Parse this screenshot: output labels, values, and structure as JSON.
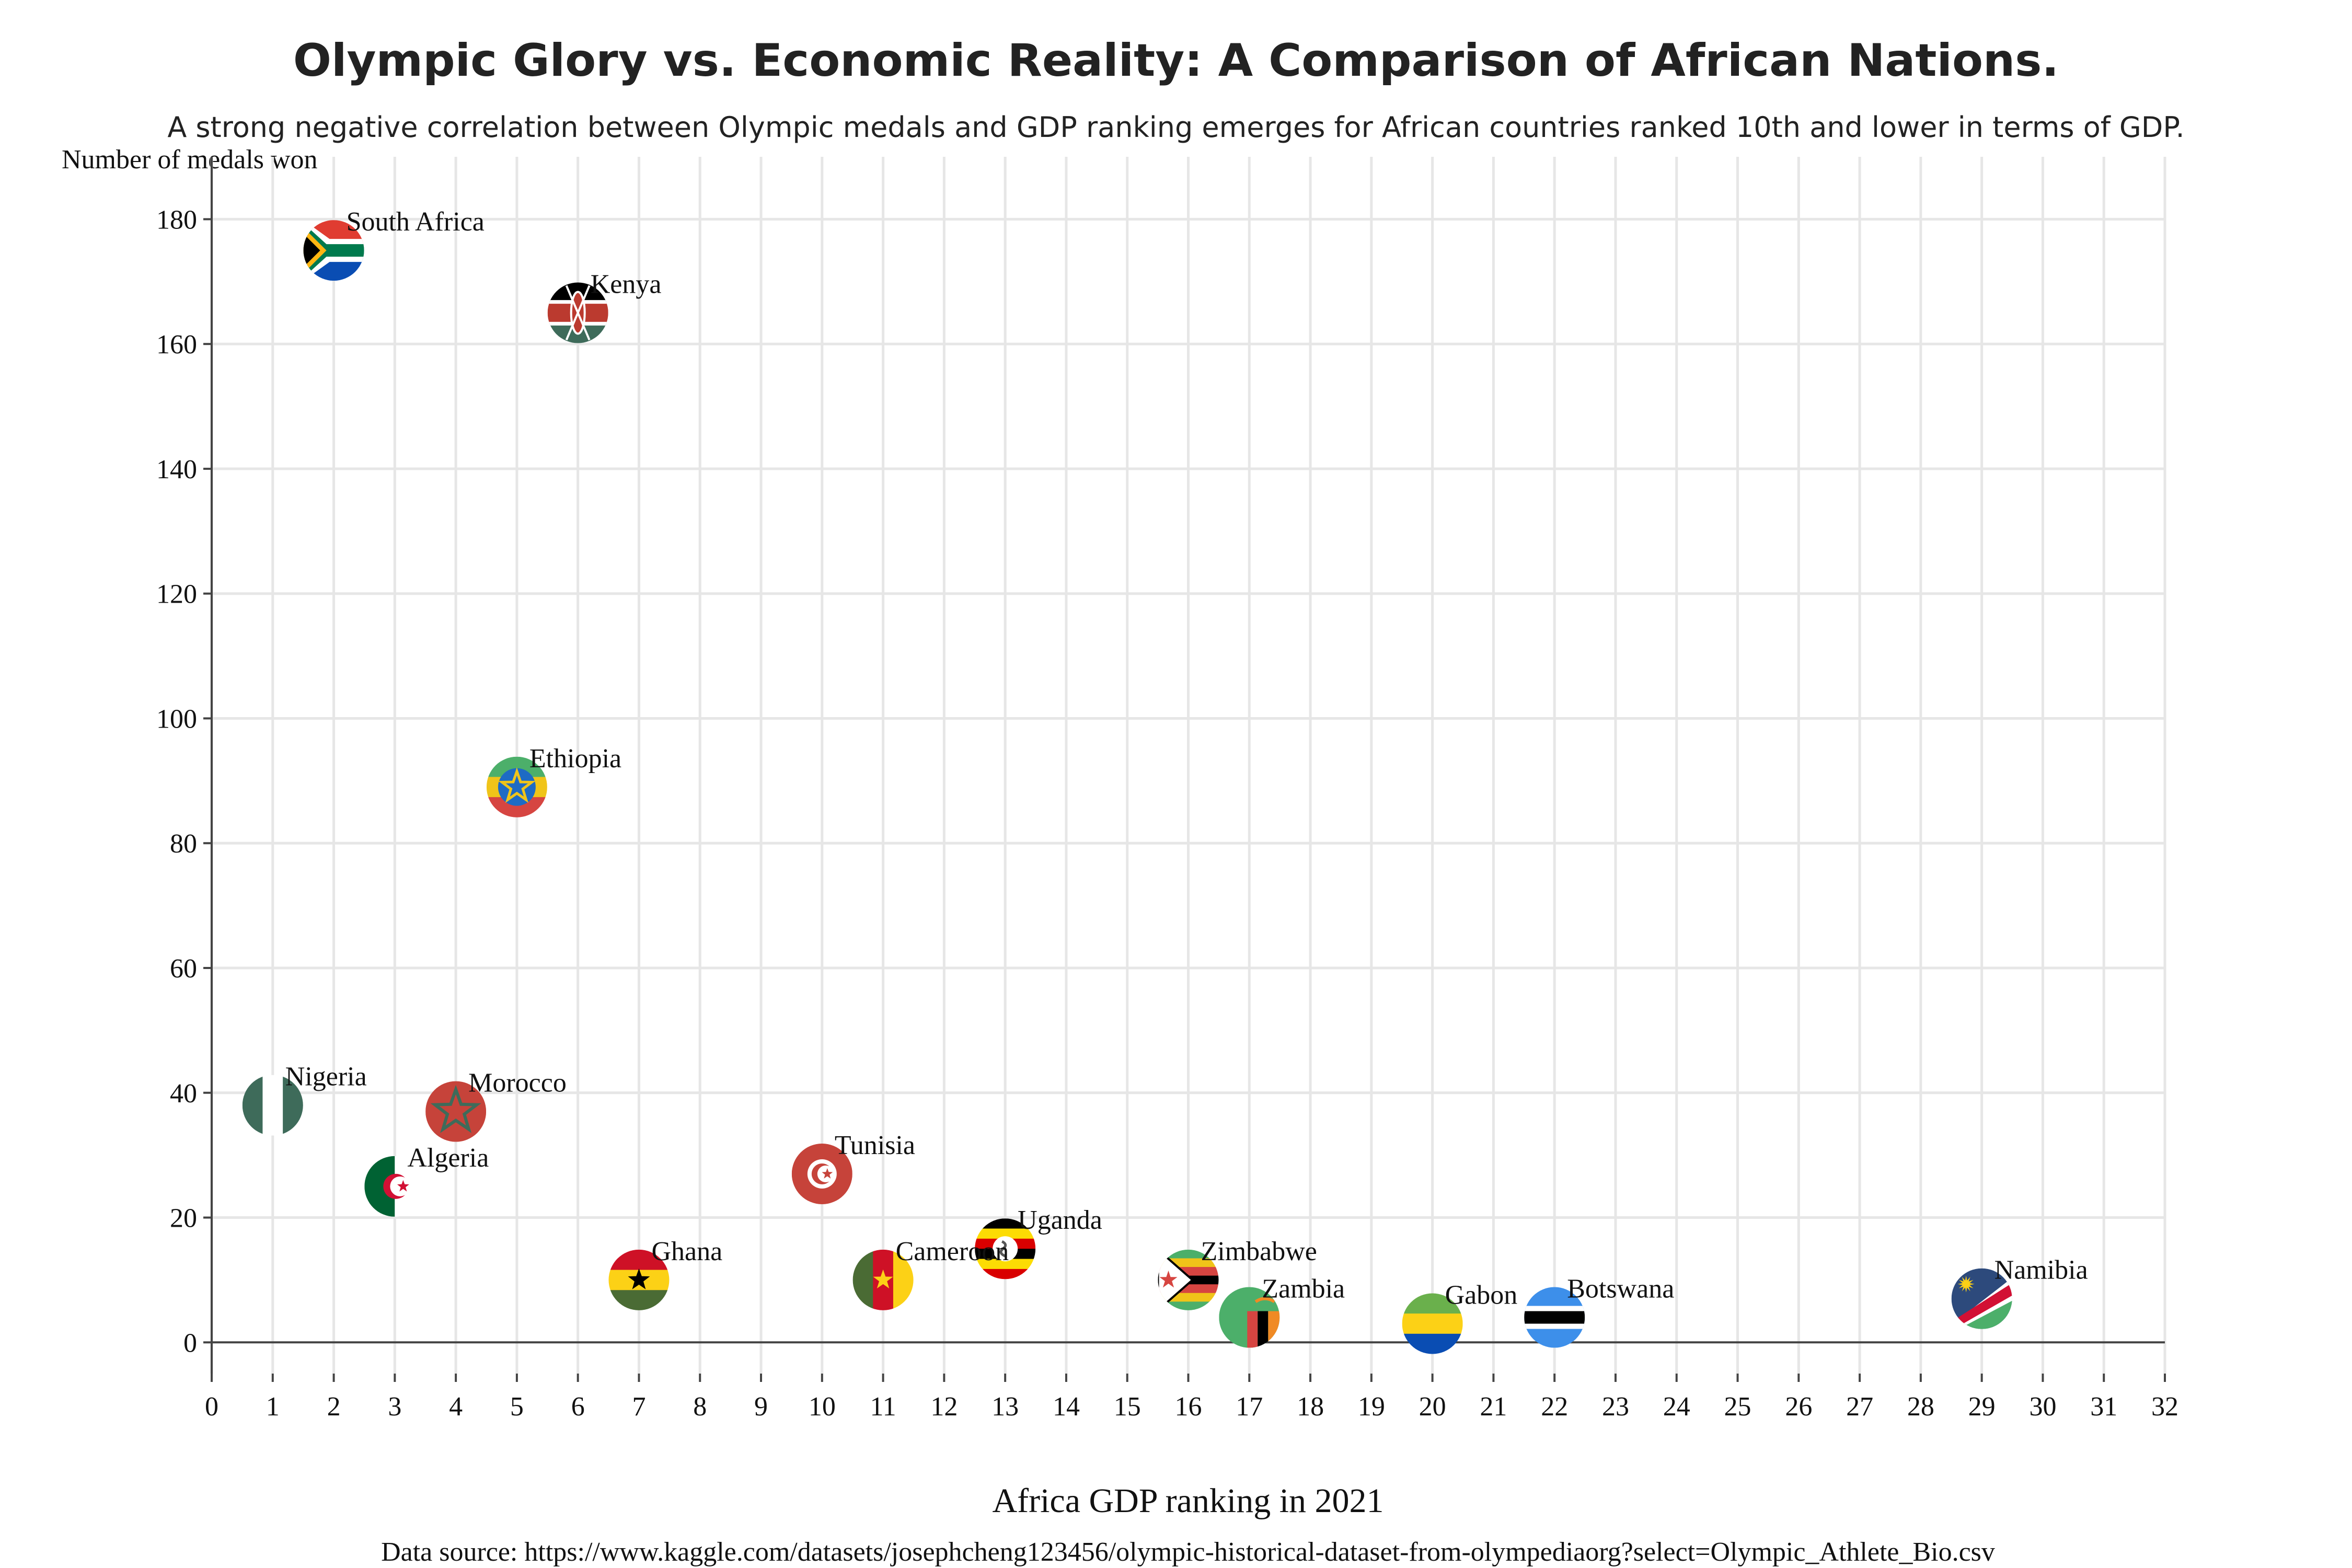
{
  "chart_data": {
    "type": "scatter",
    "title": "Olympic Glory vs. Economic Reality: A Comparison of African Nations.",
    "subtitle": "A strong negative correlation between Olympic medals and GDP ranking emerges for African countries ranked 10th and lower in terms of GDP.",
    "xlabel": "Africa GDP ranking in 2021",
    "ylabel": "Number of medals won",
    "source": "Data source: https://www.kaggle.com/datasets/josephcheng123456/olympic-historical-dataset-from-olympediaorg?select=Olympic_Athlete_Bio.csv",
    "xlim": [
      0,
      32
    ],
    "ylim": [
      -5,
      190
    ],
    "x_ticks": [
      0,
      1,
      2,
      3,
      4,
      5,
      6,
      7,
      8,
      9,
      10,
      11,
      12,
      13,
      14,
      15,
      16,
      17,
      18,
      19,
      20,
      21,
      22,
      23,
      24,
      25,
      26,
      27,
      28,
      29,
      30,
      31,
      32
    ],
    "y_ticks": [
      0,
      20,
      40,
      60,
      80,
      100,
      120,
      140,
      160,
      180
    ],
    "grid": true,
    "points": [
      {
        "name": "South Africa",
        "x": 2,
        "y": 175,
        "flag": "south-africa"
      },
      {
        "name": "Kenya",
        "x": 6,
        "y": 165,
        "flag": "kenya"
      },
      {
        "name": "Ethiopia",
        "x": 5,
        "y": 89,
        "flag": "ethiopia"
      },
      {
        "name": "Nigeria",
        "x": 1,
        "y": 38,
        "flag": "nigeria"
      },
      {
        "name": "Morocco",
        "x": 4,
        "y": 37,
        "flag": "morocco"
      },
      {
        "name": "Algeria",
        "x": 3,
        "y": 25,
        "flag": "algeria"
      },
      {
        "name": "Tunisia",
        "x": 10,
        "y": 27,
        "flag": "tunisia"
      },
      {
        "name": "Ghana",
        "x": 7,
        "y": 10,
        "flag": "ghana"
      },
      {
        "name": "Cameroon",
        "x": 11,
        "y": 10,
        "flag": "cameroon"
      },
      {
        "name": "Uganda",
        "x": 13,
        "y": 15,
        "flag": "uganda"
      },
      {
        "name": "Zimbabwe",
        "x": 16,
        "y": 10,
        "flag": "zimbabwe"
      },
      {
        "name": "Zambia",
        "x": 17,
        "y": 4,
        "flag": "zambia"
      },
      {
        "name": "Gabon",
        "x": 20,
        "y": 3,
        "flag": "gabon"
      },
      {
        "name": "Botswana",
        "x": 22,
        "y": 4,
        "flag": "botswana"
      },
      {
        "name": "Namibia",
        "x": 29,
        "y": 7,
        "flag": "namibia"
      }
    ]
  }
}
